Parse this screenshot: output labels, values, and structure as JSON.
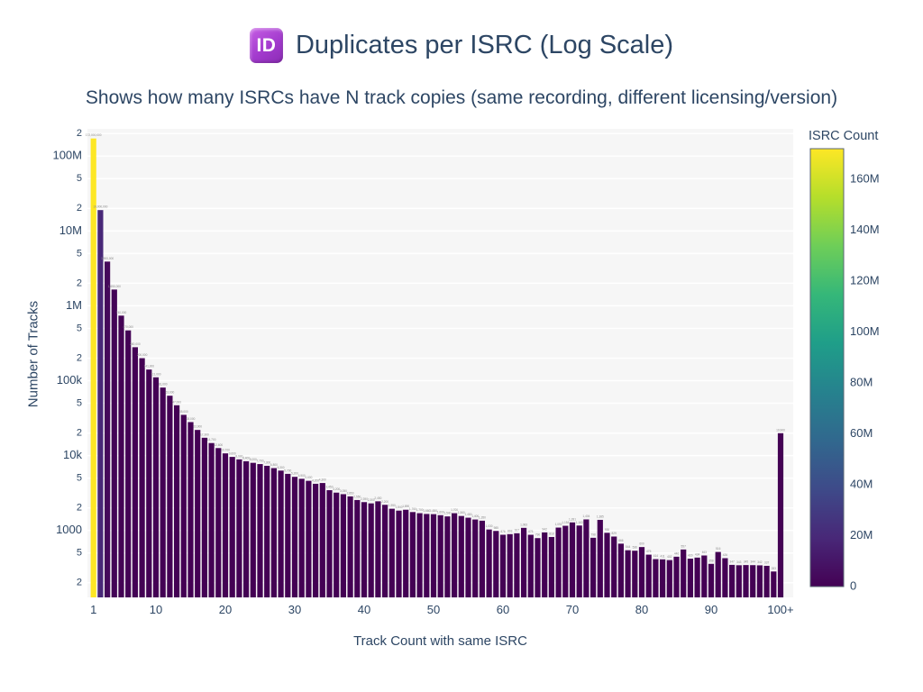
{
  "header": {
    "icon_text": "ID",
    "title": "Duplicates per ISRC (Log Scale)",
    "subtitle": "Shows how many ISRCs have N track copies (same recording, different licensing/version)"
  },
  "chart_data": {
    "type": "bar",
    "title": "Duplicates per ISRC (Log Scale)",
    "xlabel": "Track Count with same ISRC",
    "ylabel": "Number of Tracks",
    "yscale": "log",
    "ylim_log": [
      2.106,
      8.364
    ],
    "grid": "horizontal-white-on-lightgray",
    "categories": [
      "1",
      "2",
      "3",
      "4",
      "5",
      "6",
      "7",
      "8",
      "9",
      "10",
      "11",
      "12",
      "13",
      "14",
      "15",
      "16",
      "17",
      "18",
      "19",
      "20",
      "21",
      "22",
      "23",
      "24",
      "25",
      "26",
      "27",
      "28",
      "29",
      "30",
      "31",
      "32",
      "33",
      "34",
      "35",
      "36",
      "37",
      "38",
      "39",
      "40",
      "41",
      "42",
      "43",
      "44",
      "45",
      "46",
      "47",
      "48",
      "49",
      "50",
      "51",
      "52",
      "53",
      "54",
      "55",
      "56",
      "57",
      "58",
      "59",
      "60",
      "61",
      "62",
      "63",
      "64",
      "65",
      "66",
      "67",
      "68",
      "69",
      "70",
      "71",
      "72",
      "73",
      "74",
      "75",
      "76",
      "77",
      "78",
      "79",
      "80",
      "81",
      "82",
      "83",
      "84",
      "85",
      "86",
      "87",
      "88",
      "89",
      "90",
      "91",
      "92",
      "93",
      "94",
      "95",
      "96",
      "97",
      "98",
      "99",
      "100+"
    ],
    "values": [
      172000000,
      19000000,
      3900000,
      1650000,
      740000,
      470000,
      280000,
      200000,
      141000,
      111000,
      81000,
      63000,
      47000,
      35000,
      28000,
      22000,
      17300,
      14700,
      12600,
      10700,
      9600,
      8900,
      8400,
      8000,
      7700,
      7300,
      6800,
      6300,
      5700,
      5200,
      4900,
      4600,
      4200,
      4300,
      3450,
      3200,
      3050,
      2850,
      2550,
      2390,
      2300,
      2450,
      2200,
      1950,
      1840,
      1890,
      1760,
      1700,
      1660,
      1650,
      1600,
      1540,
      1700,
      1560,
      1480,
      1400,
      1350,
      1030,
      985,
      876,
      893,
      917,
      1083,
      875,
      790,
      942,
      818,
      1092,
      1154,
      1281,
      1163,
      1404,
      798,
      1385,
      930,
      829,
      666,
      544,
      536,
      600,
      475,
      414,
      411,
      402,
      446,
      557,
      420,
      434,
      463,
      358,
      516,
      426,
      347,
      343,
      345,
      344,
      342,
      337,
      283,
      19900
    ],
    "y_ticks": [
      {
        "value": 200000000,
        "label": "2",
        "minor": true
      },
      {
        "value": 100000000,
        "label": "100M",
        "minor": false
      },
      {
        "value": 50000000,
        "label": "5",
        "minor": true
      },
      {
        "value": 20000000,
        "label": "2",
        "minor": true
      },
      {
        "value": 10000000,
        "label": "10M",
        "minor": false
      },
      {
        "value": 5000000,
        "label": "5",
        "minor": true
      },
      {
        "value": 2000000,
        "label": "2",
        "minor": true
      },
      {
        "value": 1000000,
        "label": "1M",
        "minor": false
      },
      {
        "value": 500000,
        "label": "5",
        "minor": true
      },
      {
        "value": 200000,
        "label": "2",
        "minor": true
      },
      {
        "value": 100000,
        "label": "100k",
        "minor": false
      },
      {
        "value": 50000,
        "label": "5",
        "minor": true
      },
      {
        "value": 20000,
        "label": "2",
        "minor": true
      },
      {
        "value": 10000,
        "label": "10k",
        "minor": false
      },
      {
        "value": 5000,
        "label": "5",
        "minor": true
      },
      {
        "value": 2000,
        "label": "2",
        "minor": true
      },
      {
        "value": 1000,
        "label": "1000",
        "minor": false
      },
      {
        "value": 500,
        "label": "5",
        "minor": true
      },
      {
        "value": 200,
        "label": "2",
        "minor": true
      }
    ],
    "x_ticks": [
      {
        "index": 0,
        "label": "1"
      },
      {
        "index": 9,
        "label": "10"
      },
      {
        "index": 19,
        "label": "20"
      },
      {
        "index": 29,
        "label": "30"
      },
      {
        "index": 39,
        "label": "40"
      },
      {
        "index": 49,
        "label": "50"
      },
      {
        "index": 59,
        "label": "60"
      },
      {
        "index": 69,
        "label": "70"
      },
      {
        "index": 79,
        "label": "80"
      },
      {
        "index": 89,
        "label": "90"
      },
      {
        "index": 99,
        "label": "100+"
      }
    ],
    "colorbar": {
      "title": "ISRC Count",
      "max": 172000000,
      "ticks": [
        {
          "value": 0,
          "label": "0"
        },
        {
          "value": 20000000,
          "label": "20M"
        },
        {
          "value": 40000000,
          "label": "40M"
        },
        {
          "value": 60000000,
          "label": "60M"
        },
        {
          "value": 80000000,
          "label": "80M"
        },
        {
          "value": 100000000,
          "label": "100M"
        },
        {
          "value": 120000000,
          "label": "120M"
        },
        {
          "value": 140000000,
          "label": "140M"
        },
        {
          "value": 160000000,
          "label": "160M"
        }
      ]
    },
    "colors": {
      "viridis_stops": [
        "#440154",
        "#482878",
        "#3e4a89",
        "#31688e",
        "#26828e",
        "#1f9e89",
        "#35b779",
        "#6ece58",
        "#b5de2b",
        "#fde725"
      ],
      "text": "#2d4664",
      "plot_bg": "#f6f6f6",
      "grid": "#ffffff",
      "bar_label": "#8a8a8a"
    }
  }
}
